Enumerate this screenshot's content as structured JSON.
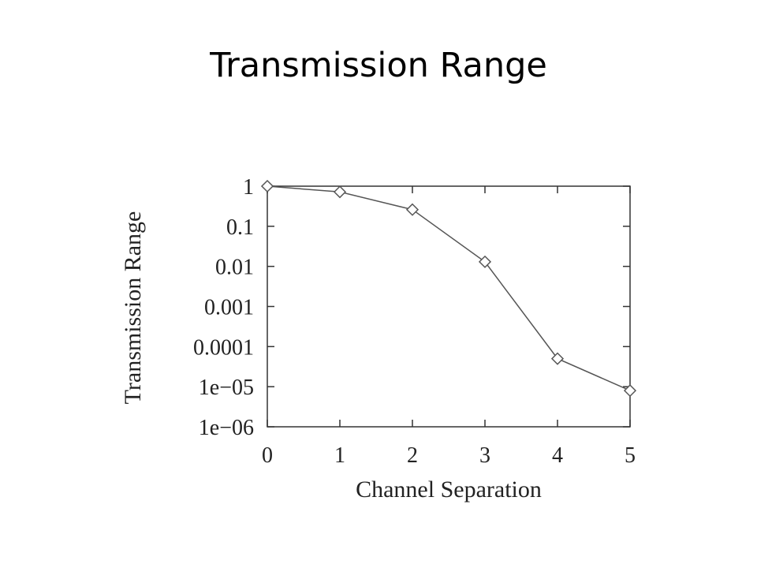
{
  "slide": {
    "title": "Transmission Range"
  },
  "chart_data": {
    "type": "line",
    "title": "",
    "xlabel": "Channel Separation",
    "ylabel": "Transmission Range",
    "x": [
      0,
      1,
      2,
      3,
      4,
      5
    ],
    "xlim": [
      0,
      5
    ],
    "ylim": [
      1e-06,
      1
    ],
    "yscale": "log",
    "x_ticks": [
      "0",
      "1",
      "2",
      "3",
      "4",
      "5"
    ],
    "y_ticks": [
      {
        "value": 1,
        "label": "1"
      },
      {
        "value": 0.1,
        "label": "0.1"
      },
      {
        "value": 0.01,
        "label": "0.01"
      },
      {
        "value": 0.001,
        "label": "0.001"
      },
      {
        "value": 0.0001,
        "label": "0.0001"
      },
      {
        "value": 1e-05,
        "label": "1e−05"
      },
      {
        "value": 1e-06,
        "label": "1e−06"
      }
    ],
    "series": [
      {
        "marker": "diamond",
        "color": "#555555",
        "values": [
          1.0,
          0.72,
          0.26,
          0.013,
          5e-05,
          8e-06
        ]
      }
    ],
    "grid": false
  }
}
